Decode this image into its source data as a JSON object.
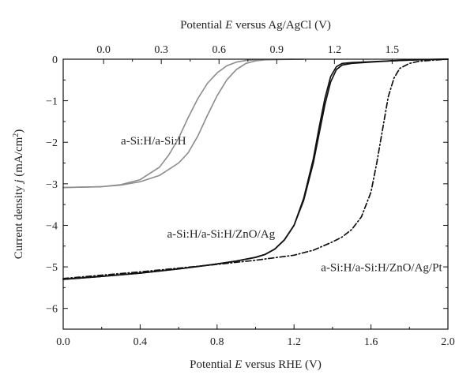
{
  "chart_data": {
    "type": "line",
    "xlabel": "Potential E versus RHE (V)",
    "xlabel_parts": [
      "Potential ",
      "E",
      " versus RHE (V)"
    ],
    "x2label": "Potential E versus Ag/AgCl (V)",
    "x2label_parts": [
      "Potential ",
      "E",
      " versus Ag/AgCl (V)"
    ],
    "ylabel": "Current density j (mA/cm2)",
    "ylabel_parts": [
      "Current density ",
      "j",
      " (mA/cm",
      "2",
      ")"
    ],
    "xlim": [
      0.0,
      2.0
    ],
    "ylim": [
      -6.5,
      0.0
    ],
    "x2_offset": -0.21,
    "x_ticks": [
      0.0,
      0.4,
      0.8,
      1.2,
      1.6,
      2.0
    ],
    "x_tick_labels": [
      "0.0",
      "0.4",
      "0.8",
      "1.2",
      "1.6",
      "2.0"
    ],
    "x2_ticks": [
      0.0,
      0.3,
      0.6,
      0.9,
      1.2,
      1.5
    ],
    "x2_tick_labels": [
      "0.0",
      "0.3",
      "0.6",
      "0.9",
      "1.2",
      "1.5"
    ],
    "y_ticks": [
      0,
      -1,
      -2,
      -3,
      -4,
      -5,
      -6
    ],
    "y_tick_labels": [
      "0",
      "−1",
      "−2",
      "−3",
      "−4",
      "−5",
      "−6"
    ],
    "grid": false,
    "series": [
      {
        "label": "a-Si:H/a-Si:H",
        "color": "#8c8c8c",
        "style": "solid",
        "curves": [
          [
            [
              0.0,
              -3.09
            ],
            [
              0.2,
              -3.07
            ],
            [
              0.3,
              -3.02
            ],
            [
              0.4,
              -2.9
            ],
            [
              0.5,
              -2.6
            ],
            [
              0.55,
              -2.3
            ],
            [
              0.6,
              -1.9
            ],
            [
              0.65,
              -1.4
            ],
            [
              0.7,
              -0.95
            ],
            [
              0.75,
              -0.58
            ],
            [
              0.8,
              -0.33
            ],
            [
              0.85,
              -0.16
            ],
            [
              0.9,
              -0.07
            ],
            [
              0.95,
              -0.03
            ],
            [
              1.0,
              -0.015
            ],
            [
              1.1,
              -0.005
            ],
            [
              1.2,
              0.0
            ]
          ],
          [
            [
              0.0,
              -3.09
            ],
            [
              0.2,
              -3.07
            ],
            [
              0.3,
              -3.03
            ],
            [
              0.4,
              -2.95
            ],
            [
              0.5,
              -2.8
            ],
            [
              0.6,
              -2.5
            ],
            [
              0.65,
              -2.25
            ],
            [
              0.7,
              -1.85
            ],
            [
              0.75,
              -1.35
            ],
            [
              0.8,
              -0.88
            ],
            [
              0.85,
              -0.5
            ],
            [
              0.9,
              -0.25
            ],
            [
              0.95,
              -0.1
            ],
            [
              1.0,
              -0.04
            ],
            [
              1.05,
              -0.015
            ],
            [
              1.15,
              -0.005
            ],
            [
              1.25,
              0.0
            ]
          ]
        ]
      },
      {
        "label": "a-Si:H/a-Si:H/ZnO/Ag",
        "color": "#111111",
        "style": "solid",
        "curves": [
          [
            [
              0.0,
              -5.3
            ],
            [
              0.2,
              -5.23
            ],
            [
              0.4,
              -5.15
            ],
            [
              0.6,
              -5.05
            ],
            [
              0.8,
              -4.93
            ],
            [
              0.9,
              -4.86
            ],
            [
              1.0,
              -4.77
            ],
            [
              1.05,
              -4.7
            ],
            [
              1.1,
              -4.57
            ],
            [
              1.15,
              -4.35
            ],
            [
              1.2,
              -4.0
            ],
            [
              1.25,
              -3.4
            ],
            [
              1.3,
              -2.5
            ],
            [
              1.33,
              -1.8
            ],
            [
              1.36,
              -1.1
            ],
            [
              1.39,
              -0.55
            ],
            [
              1.42,
              -0.25
            ],
            [
              1.45,
              -0.14
            ],
            [
              1.5,
              -0.1
            ],
            [
              1.6,
              -0.07
            ],
            [
              1.7,
              -0.04
            ],
            [
              1.8,
              -0.02
            ],
            [
              1.9,
              -0.005
            ],
            [
              2.0,
              0.0
            ]
          ],
          [
            [
              0.0,
              -5.3
            ],
            [
              0.2,
              -5.23
            ],
            [
              0.4,
              -5.15
            ],
            [
              0.6,
              -5.05
            ],
            [
              0.8,
              -4.93
            ],
            [
              0.9,
              -4.86
            ],
            [
              1.0,
              -4.77
            ],
            [
              1.05,
              -4.7
            ],
            [
              1.1,
              -4.57
            ],
            [
              1.15,
              -4.35
            ],
            [
              1.2,
              -4.0
            ],
            [
              1.25,
              -3.35
            ],
            [
              1.3,
              -2.4
            ],
            [
              1.33,
              -1.65
            ],
            [
              1.36,
              -0.95
            ],
            [
              1.39,
              -0.42
            ],
            [
              1.42,
              -0.18
            ],
            [
              1.45,
              -0.1
            ],
            [
              1.5,
              -0.08
            ],
            [
              1.6,
              -0.06
            ],
            [
              1.7,
              -0.04
            ],
            [
              1.8,
              -0.02
            ],
            [
              1.9,
              -0.005
            ],
            [
              2.0,
              0.0
            ]
          ]
        ]
      },
      {
        "label": "a-Si:H/a-Si:H/ZnO/Ag/Pt",
        "color": "#111111",
        "style": "dashdot",
        "curves": [
          [
            [
              0.0,
              -5.28
            ],
            [
              0.2,
              -5.2
            ],
            [
              0.4,
              -5.12
            ],
            [
              0.6,
              -5.03
            ],
            [
              0.8,
              -4.94
            ],
            [
              1.0,
              -4.84
            ],
            [
              1.2,
              -4.72
            ],
            [
              1.3,
              -4.6
            ],
            [
              1.4,
              -4.4
            ],
            [
              1.45,
              -4.28
            ],
            [
              1.5,
              -4.1
            ],
            [
              1.55,
              -3.8
            ],
            [
              1.6,
              -3.2
            ],
            [
              1.63,
              -2.5
            ],
            [
              1.66,
              -1.7
            ],
            [
              1.69,
              -0.9
            ],
            [
              1.72,
              -0.45
            ],
            [
              1.75,
              -0.22
            ],
            [
              1.8,
              -0.1
            ],
            [
              1.85,
              -0.05
            ],
            [
              1.9,
              -0.03
            ],
            [
              2.0,
              0.0
            ]
          ]
        ]
      }
    ],
    "annotations": [
      {
        "text": "a-Si:H/a-Si:H",
        "series": 0,
        "x": 0.3,
        "y": -2.05
      },
      {
        "text": "a-Si:H/a-Si:H/ZnO/Ag",
        "series": 1,
        "x": 0.54,
        "y": -4.3
      },
      {
        "text": "a-Si:H/a-Si:H/ZnO/Ag/Pt",
        "series": 2,
        "x": 1.34,
        "y": -5.1
      }
    ]
  }
}
